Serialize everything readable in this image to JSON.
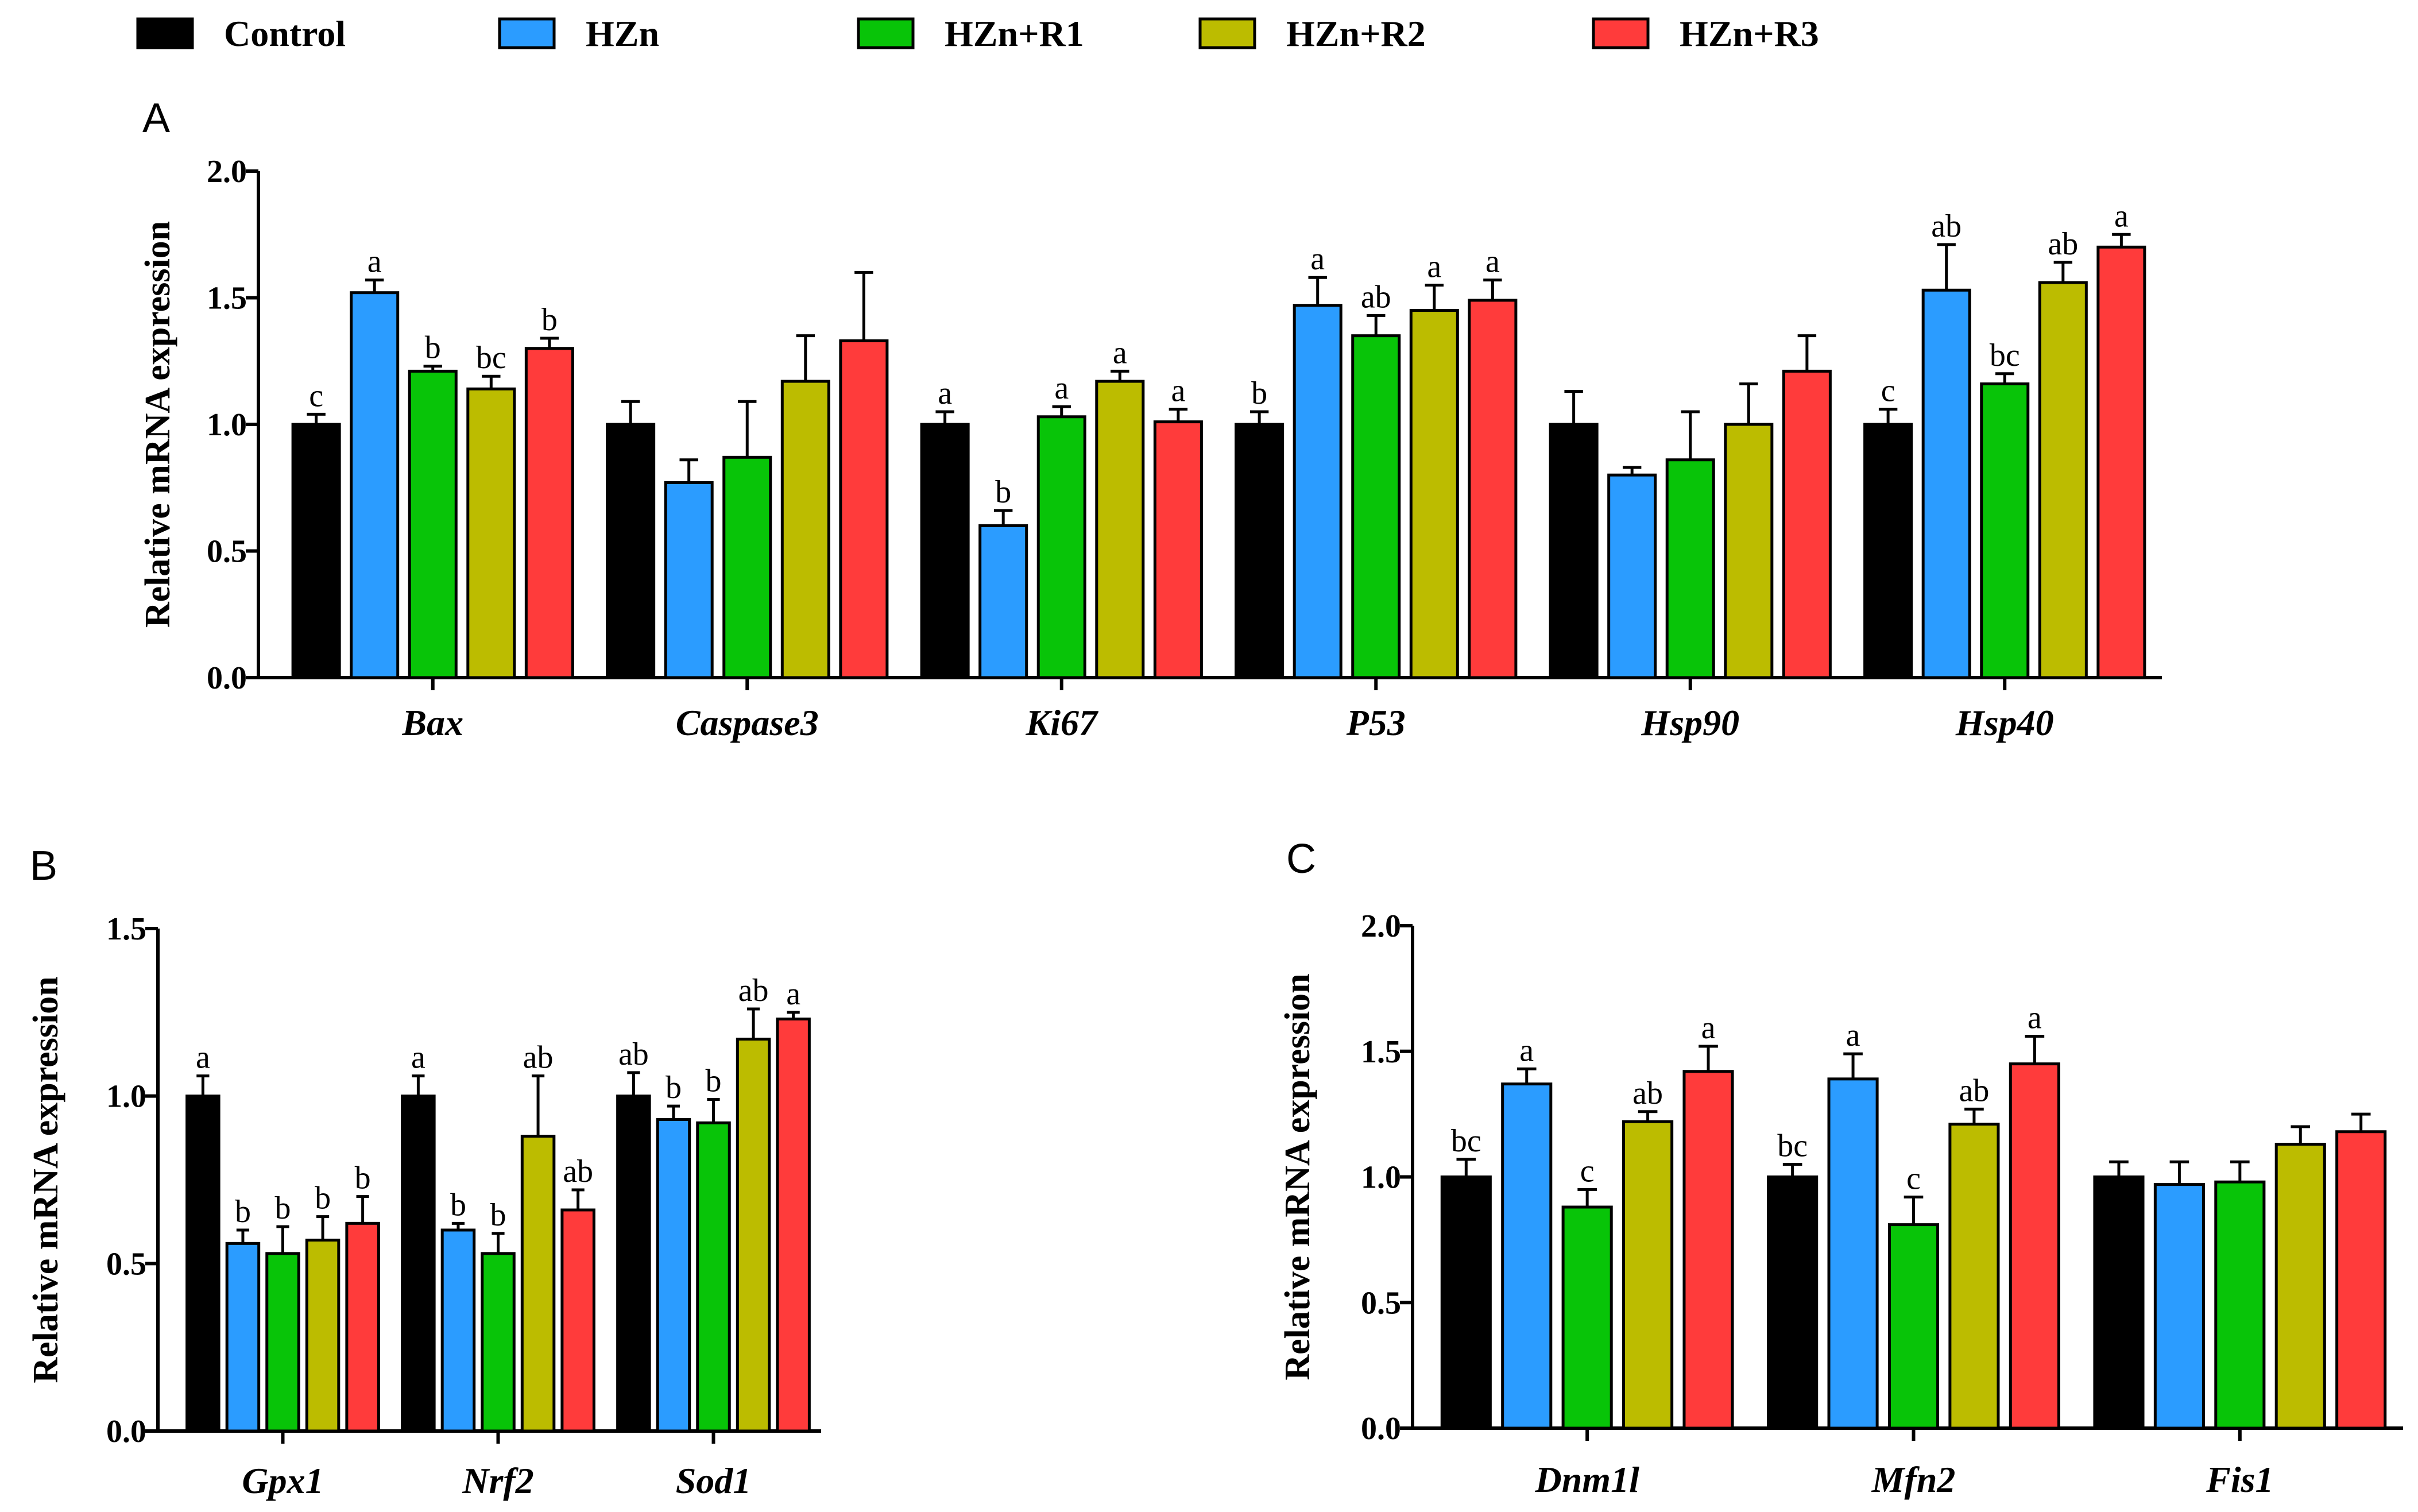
{
  "legend": [
    {
      "name": "Control",
      "color": "#000000"
    },
    {
      "name": "HZn",
      "color": "#2b9cff"
    },
    {
      "name": "HZn+R1",
      "color": "#08c408"
    },
    {
      "name": "HZn+R2",
      "color": "#bcbc00"
    },
    {
      "name": "HZn+R3",
      "color": "#ff3b3b"
    }
  ],
  "chart_data": [
    {
      "panel": "A",
      "type": "bar",
      "ylabel": "Relative mRNA expression",
      "ylim": [
        0,
        2.0
      ],
      "ticks": [
        "0.0",
        "0.5",
        "1.0",
        "1.5",
        "2.0"
      ],
      "categories": [
        "Bax",
        "Caspase3",
        "Ki67",
        "P53",
        "Hsp90",
        "Hsp40"
      ],
      "series": [
        {
          "name": "Control",
          "values": [
            1.0,
            1.0,
            1.0,
            1.0,
            1.0,
            1.0
          ],
          "errors": [
            0.04,
            0.09,
            0.05,
            0.05,
            0.13,
            0.06
          ],
          "labels": [
            "c",
            "",
            "a",
            "b",
            "",
            "c"
          ]
        },
        {
          "name": "HZn",
          "values": [
            1.52,
            0.77,
            0.6,
            1.47,
            0.8,
            1.53
          ],
          "errors": [
            0.05,
            0.09,
            0.06,
            0.11,
            0.03,
            0.18
          ],
          "labels": [
            "a",
            "",
            "b",
            "a",
            "",
            "ab"
          ]
        },
        {
          "name": "HZn+R1",
          "values": [
            1.21,
            0.87,
            1.03,
            1.35,
            0.86,
            1.16
          ],
          "errors": [
            0.02,
            0.22,
            0.04,
            0.08,
            0.19,
            0.04
          ],
          "labels": [
            "b",
            "",
            "a",
            "ab",
            "",
            "bc"
          ]
        },
        {
          "name": "HZn+R2",
          "values": [
            1.14,
            1.17,
            1.17,
            1.45,
            1.0,
            1.56
          ],
          "errors": [
            0.05,
            0.18,
            0.04,
            0.1,
            0.16,
            0.08
          ],
          "labels": [
            "bc",
            "",
            "a",
            "a",
            "",
            "ab"
          ]
        },
        {
          "name": "HZn+R3",
          "values": [
            1.3,
            1.33,
            1.01,
            1.49,
            1.21,
            1.7
          ],
          "errors": [
            0.04,
            0.27,
            0.05,
            0.08,
            0.14,
            0.05
          ],
          "labels": [
            "b",
            "",
            "a",
            "a",
            "",
            "a"
          ]
        }
      ]
    },
    {
      "panel": "B",
      "type": "bar",
      "ylabel": "Relative mRNA expression",
      "ylim": [
        0,
        1.5
      ],
      "ticks": [
        "0.0",
        "0.5",
        "1.0",
        "1.5"
      ],
      "categories": [
        "Gpx1",
        "Nrf2",
        "Sod1"
      ],
      "series": [
        {
          "name": "Control",
          "values": [
            1.0,
            1.0,
            1.0
          ],
          "errors": [
            0.06,
            0.06,
            0.07
          ],
          "labels": [
            "a",
            "a",
            "ab"
          ]
        },
        {
          "name": "HZn",
          "values": [
            0.56,
            0.6,
            0.93
          ],
          "errors": [
            0.04,
            0.02,
            0.04
          ],
          "labels": [
            "b",
            "b",
            "b"
          ]
        },
        {
          "name": "HZn+R1",
          "values": [
            0.53,
            0.53,
            0.92
          ],
          "errors": [
            0.08,
            0.06,
            0.07
          ],
          "labels": [
            "b",
            "b",
            "b"
          ]
        },
        {
          "name": "HZn+R2",
          "values": [
            0.57,
            0.88,
            1.17
          ],
          "errors": [
            0.07,
            0.18,
            0.09
          ],
          "labels": [
            "b",
            "ab",
            "ab"
          ]
        },
        {
          "name": "HZn+R3",
          "values": [
            0.62,
            0.66,
            1.23
          ],
          "errors": [
            0.08,
            0.06,
            0.02
          ],
          "labels": [
            "b",
            "ab",
            "a"
          ]
        }
      ]
    },
    {
      "panel": "C",
      "type": "bar",
      "ylabel": "Relative mRNA expression",
      "ylim": [
        0,
        2.0
      ],
      "ticks": [
        "0.0",
        "0.5",
        "1.0",
        "1.5",
        "2.0"
      ],
      "categories": [
        "Dnm1l",
        "Mfn2",
        "Fis1"
      ],
      "series": [
        {
          "name": "Control",
          "values": [
            1.0,
            1.0,
            1.0
          ],
          "errors": [
            0.07,
            0.05,
            0.06
          ],
          "labels": [
            "bc",
            "bc",
            ""
          ]
        },
        {
          "name": "HZn",
          "values": [
            1.37,
            1.39,
            0.97
          ],
          "errors": [
            0.06,
            0.1,
            0.09
          ],
          "labels": [
            "a",
            "a",
            ""
          ]
        },
        {
          "name": "HZn+R1",
          "values": [
            0.88,
            0.81,
            0.98
          ],
          "errors": [
            0.07,
            0.11,
            0.08
          ],
          "labels": [
            "c",
            "c",
            ""
          ]
        },
        {
          "name": "HZn+R2",
          "values": [
            1.22,
            1.21,
            1.13
          ],
          "errors": [
            0.04,
            0.06,
            0.07
          ],
          "labels": [
            "ab",
            "ab",
            ""
          ]
        },
        {
          "name": "HZn+R3",
          "values": [
            1.42,
            1.45,
            1.18
          ],
          "errors": [
            0.1,
            0.11,
            0.07
          ],
          "labels": [
            "a",
            "a",
            ""
          ]
        }
      ]
    }
  ]
}
